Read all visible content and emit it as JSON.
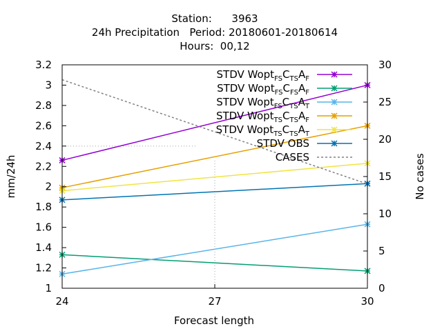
{
  "chart_data": {
    "type": "line",
    "title_lines": [
      "Station:      3963",
      "24h Precipitation   Period: 20180601-20180614",
      "Hours:  00,12"
    ],
    "xlabel": "Forecast length",
    "ylabel": "mm/24h",
    "y2label": "No cases",
    "x": [
      24,
      30
    ],
    "x_ticks": [
      24,
      27,
      30
    ],
    "xlim": [
      24,
      30
    ],
    "ylim": [
      1,
      3.2
    ],
    "y_ticks": [
      1,
      1.2,
      1.4,
      1.6,
      1.8,
      2,
      2.2,
      2.4,
      2.6,
      2.8,
      3,
      3.2
    ],
    "y2lim": [
      0,
      30
    ],
    "y2_ticks": [
      0,
      5,
      10,
      15,
      20,
      25,
      30
    ],
    "grid": "partial",
    "legend_position": "top-right",
    "series": [
      {
        "name": "STDV Wopt_FS C_TS A_F",
        "values": [
          2.26,
          3.0
        ],
        "color": "#9400d3",
        "axis": "y1",
        "marker": "star"
      },
      {
        "name": "STDV Wopt_FS C_FS A_F",
        "values": [
          1.33,
          1.17
        ],
        "color": "#009e73",
        "axis": "y1",
        "marker": "star"
      },
      {
        "name": "STDV Wopt_FS C_TS A_T",
        "values": [
          1.14,
          1.63
        ],
        "color": "#56b4e9",
        "axis": "y1",
        "marker": "star"
      },
      {
        "name": "STDV Wopt_TS C_TS A_F",
        "values": [
          1.99,
          2.6
        ],
        "color": "#e69f00",
        "axis": "y1",
        "marker": "star"
      },
      {
        "name": "STDV Wopt_TS C_TS A_T",
        "values": [
          1.96,
          2.23
        ],
        "color": "#f0e442",
        "axis": "y1",
        "marker": "star"
      },
      {
        "name": "STDV OBS",
        "values": [
          1.87,
          2.03
        ],
        "color": "#0072b2",
        "axis": "y1",
        "marker": "star"
      },
      {
        "name": "CASES",
        "values": [
          28,
          14
        ],
        "color": "#808080",
        "axis": "y2",
        "dashed": true
      }
    ],
    "legend": [
      {
        "parts": [
          {
            "t": "STDV Wopt"
          },
          {
            "t": "FS",
            "sub": true
          },
          {
            "t": "C"
          },
          {
            "t": "TS",
            "sub": true
          },
          {
            "t": "A"
          },
          {
            "t": "F",
            "sub": true
          }
        ]
      },
      {
        "parts": [
          {
            "t": "STDV Wopt"
          },
          {
            "t": "FS",
            "sub": true
          },
          {
            "t": "C"
          },
          {
            "t": "FS",
            "sub": true
          },
          {
            "t": "A"
          },
          {
            "t": "F",
            "sub": true
          }
        ]
      },
      {
        "parts": [
          {
            "t": "STDV Wopt"
          },
          {
            "t": "FS",
            "sub": true
          },
          {
            "t": "C"
          },
          {
            "t": "TS",
            "sub": true
          },
          {
            "t": "A"
          },
          {
            "t": "T",
            "sub": true
          }
        ]
      },
      {
        "parts": [
          {
            "t": "STDV Wopt"
          },
          {
            "t": "TS",
            "sub": true
          },
          {
            "t": "C"
          },
          {
            "t": "TS",
            "sub": true
          },
          {
            "t": "A"
          },
          {
            "t": "F",
            "sub": true
          }
        ]
      },
      {
        "parts": [
          {
            "t": "STDV Wopt"
          },
          {
            "t": "TS",
            "sub": true
          },
          {
            "t": "C"
          },
          {
            "t": "TS",
            "sub": true
          },
          {
            "t": "A"
          },
          {
            "t": "T",
            "sub": true
          }
        ]
      },
      {
        "parts": [
          {
            "t": "STDV OBS"
          }
        ]
      },
      {
        "parts": [
          {
            "t": "CASES"
          }
        ]
      }
    ]
  }
}
